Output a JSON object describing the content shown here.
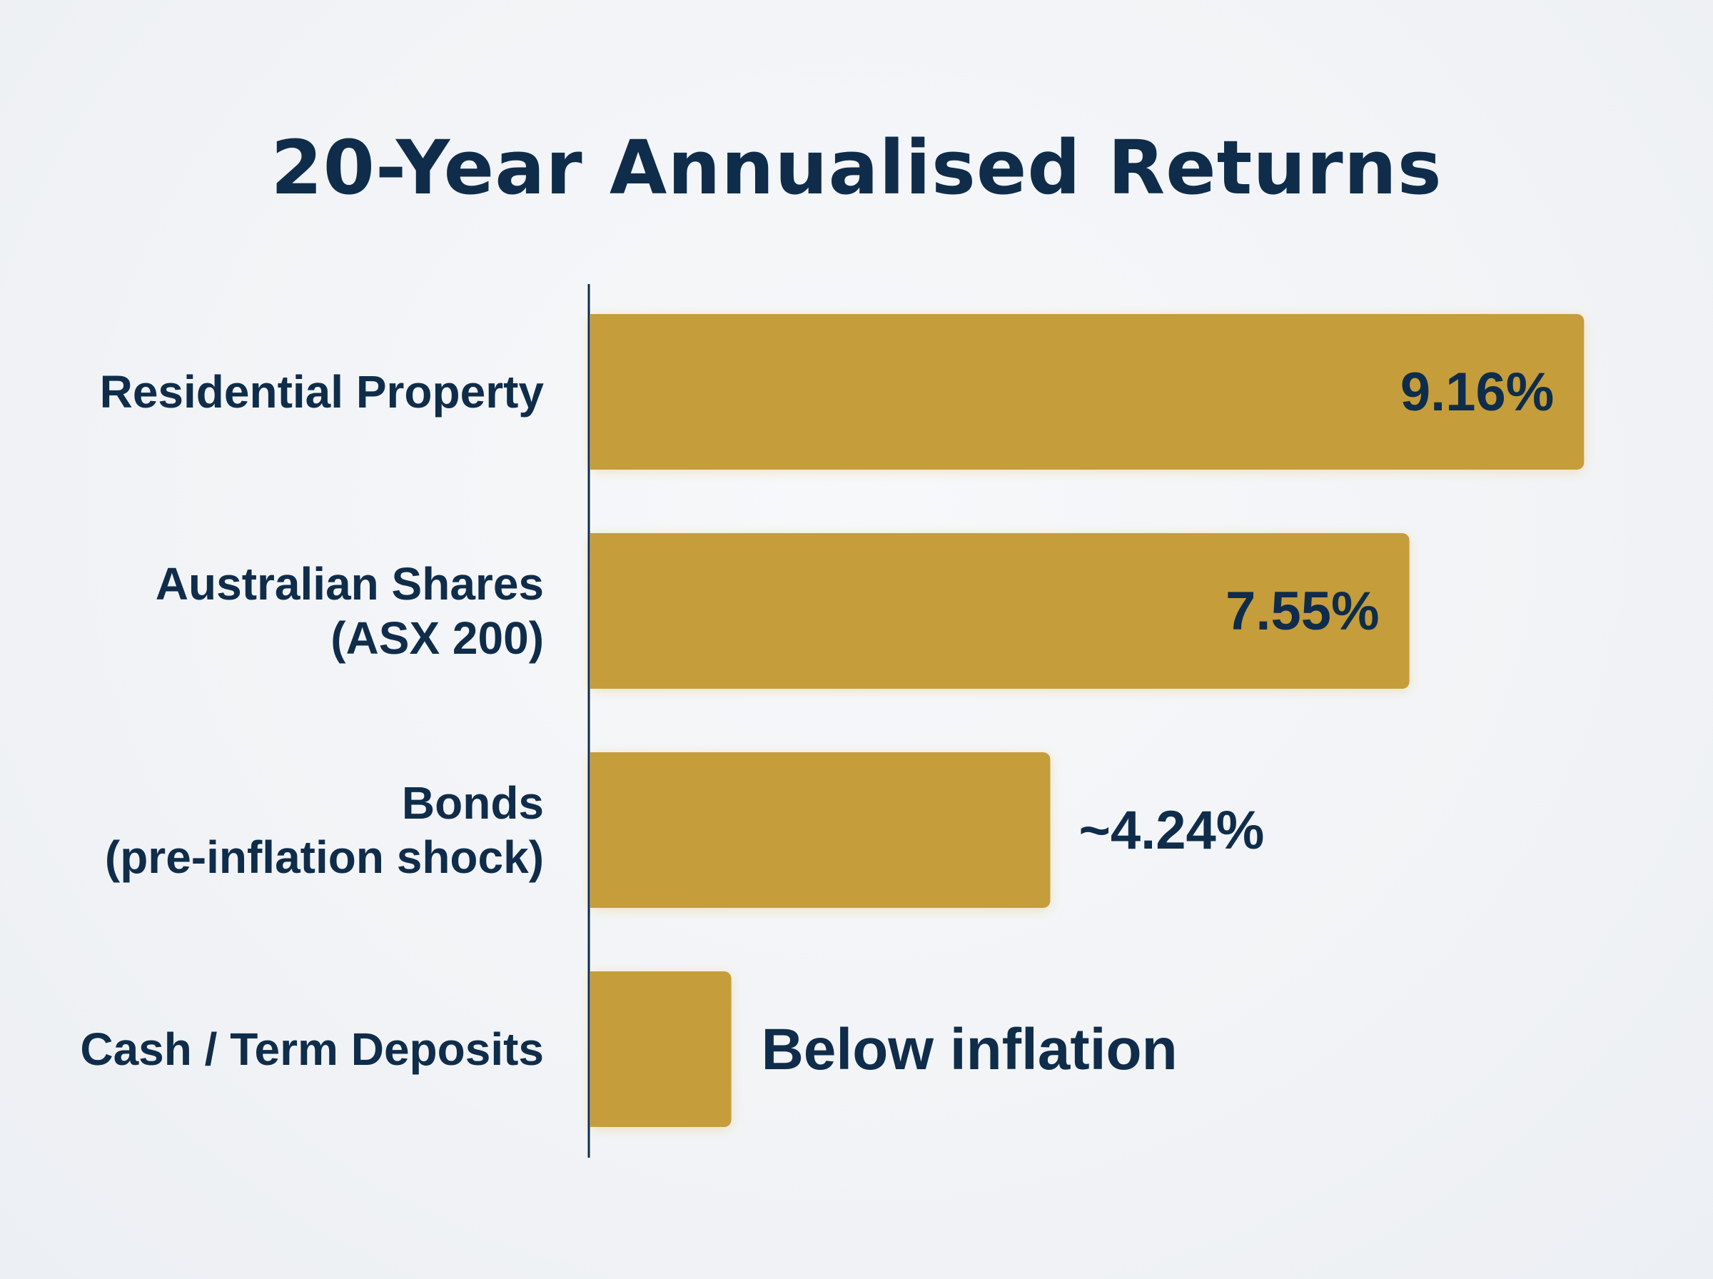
{
  "chart_data": {
    "type": "bar",
    "orientation": "horizontal",
    "title": "20-Year Annualised Returns",
    "categories": [
      [
        "Residential Property"
      ],
      [
        "Australian Shares",
        "(ASX 200)"
      ],
      [
        "Bonds",
        "(pre-inflation shock)"
      ],
      [
        "Cash / Term Deposits"
      ]
    ],
    "values": [
      9.16,
      7.55,
      4.24,
      1.3
    ],
    "data_labels": [
      "9.16%",
      "7.55%",
      "~4.24%",
      "Below inflation"
    ],
    "xlabel": "",
    "ylabel": "",
    "grid": false,
    "legend": "none",
    "colors": {
      "bar": "#c59d3b",
      "text": "#0f2d4a",
      "axis": "#0f2d4a",
      "background": "#f1f3f6"
    }
  }
}
